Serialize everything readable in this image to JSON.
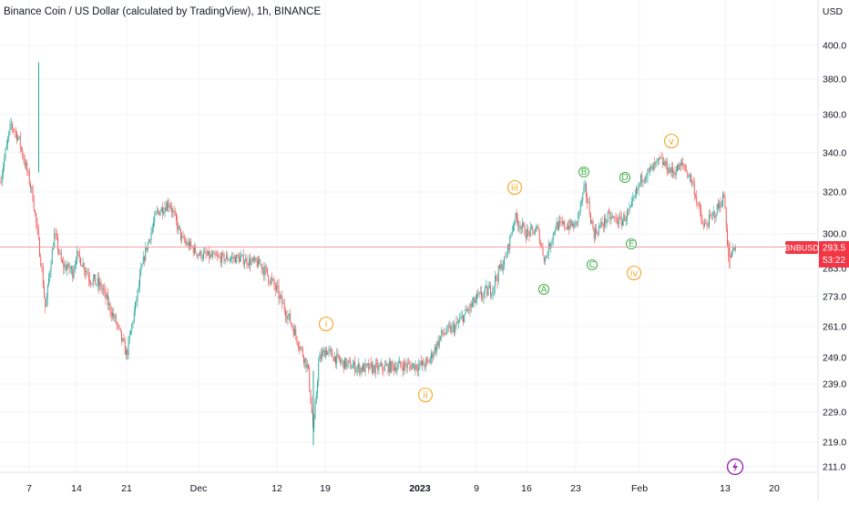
{
  "header": {
    "title": "Binance Coin / US Dollar (calculated by TradingView), 1h, BINANCE"
  },
  "price_scale": {
    "currency": "USD",
    "symbol_tag": "BNBUSD",
    "last_price": "293.5",
    "countdown": "53:22"
  },
  "colors": {
    "up": "#26a69a",
    "down": "#ef5350",
    "grid": "#f0f3fa",
    "price_line": "#f7a1a1",
    "wave_major": "#f5a623",
    "wave_minor": "#4caf50",
    "tag_bg": "#f23645",
    "flash_icon": "#9c27b0"
  },
  "icons": {
    "flash": "lightning-bolt-circle-icon"
  },
  "chart_data": {
    "type": "candlestick",
    "title": "Binance Coin / US Dollar (calculated by TradingView), 1h, BINANCE",
    "ylabel": "USD",
    "ylim": [
      207,
      412
    ],
    "y_scale": "log",
    "y_ticks": [
      "400.0",
      "380.0",
      "360.0",
      "340.0",
      "320.0",
      "300.0",
      "283.0",
      "273.0",
      "261.0",
      "249.0",
      "239.0",
      "229.0",
      "219.0",
      "211.0"
    ],
    "x_ticks": [
      "7",
      "14",
      "21",
      "Dec",
      "12",
      "19",
      "2023",
      "9",
      "16",
      "23",
      "Feb",
      "13",
      "20"
    ],
    "grid": true,
    "price_path": [
      [
        "7 Nov 00:00",
        325
      ],
      [
        "Nov 7 06:00",
        340
      ],
      [
        "Nov 7 18:00",
        355
      ],
      [
        "Nov 8 06:00",
        348
      ],
      [
        "Nov 8 14:00",
        330
      ],
      [
        "Nov 9 00:00",
        318
      ],
      [
        "Nov 9 12:00",
        268
      ],
      [
        "Nov 10 00:00",
        300
      ],
      [
        "Nov 11 00:00",
        285
      ],
      [
        "Nov 13 00:00",
        282
      ],
      [
        "14 Nov",
        290
      ],
      [
        "Nov 16",
        280
      ],
      [
        "Nov 18",
        276
      ],
      [
        "Nov 20",
        262
      ],
      [
        "21 Nov",
        250
      ],
      [
        "Nov 23",
        292
      ],
      [
        "Nov 24",
        310
      ],
      [
        "Nov 26",
        315
      ],
      [
        "Nov 28",
        297
      ],
      [
        "Nov 30",
        293
      ],
      [
        "1 Dec",
        290
      ],
      [
        "Dec 4",
        288
      ],
      [
        "Dec 7",
        288
      ],
      [
        "Dec 10",
        285
      ],
      [
        "12 Dec",
        275
      ],
      [
        "Dec 14",
        262
      ],
      [
        "Dec 16",
        245
      ],
      [
        "Dec 17",
        222
      ],
      [
        "Dec 18",
        248
      ],
      [
        "19 Dec",
        252
      ],
      [
        "Dec 22",
        247
      ],
      [
        "Dec 25",
        245
      ],
      [
        "Dec 28",
        245
      ],
      [
        "Dec 31",
        246
      ],
      [
        "1 Jan 2023",
        246
      ],
      [
        "Jan 3",
        247
      ],
      [
        "Jan 5",
        258
      ],
      [
        "Jan 7",
        261
      ],
      [
        "9 Jan",
        272
      ],
      [
        "Jan 11",
        276
      ],
      [
        "Jan 13",
        288
      ],
      [
        "Jan 14",
        308
      ],
      [
        "16 Jan",
        300
      ],
      [
        "Jan 18",
        302
      ],
      [
        "Jan 19",
        287
      ],
      [
        "Jan 21",
        304
      ],
      [
        "23 Jan",
        304
      ],
      [
        "Jan 25",
        322
      ],
      [
        "Jan 26",
        300
      ],
      [
        "Jan 28",
        308
      ],
      [
        "Jan 30",
        306
      ],
      [
        "Jan 31",
        311
      ],
      [
        "Feb 2",
        328
      ],
      [
        "Feb 3",
        330
      ],
      [
        "Feb 5",
        336
      ],
      [
        "Feb 7",
        330
      ],
      [
        "Feb 8",
        334
      ],
      [
        "Feb 9",
        325
      ],
      [
        "Feb 10",
        303
      ],
      [
        "Feb 11",
        310
      ],
      [
        "Feb 12",
        318
      ],
      [
        "Feb 12 12:00",
        287
      ],
      [
        "13 Feb",
        290
      ],
      [
        "Feb 13 12:00",
        293.5
      ]
    ],
    "annotations": [
      {
        "text": "i",
        "style": "roman-circle",
        "near": "late Dec rally"
      },
      {
        "text": "ii",
        "style": "roman-circle",
        "near": "early Jan low"
      },
      {
        "text": "iii",
        "style": "roman-circle",
        "near": "mid Jan high"
      },
      {
        "text": "iv",
        "style": "roman-circle",
        "near": "early Feb"
      },
      {
        "text": "v",
        "style": "roman-circle",
        "near": "Feb high"
      },
      {
        "text": "A",
        "style": "letter-circle",
        "near": "Jan 19 low"
      },
      {
        "text": "B",
        "style": "letter-circle",
        "near": "Jan 25 high"
      },
      {
        "text": "C",
        "style": "letter-circle",
        "near": "Jan 26 low"
      },
      {
        "text": "D",
        "style": "letter-circle",
        "near": "Jan 30 high"
      },
      {
        "text": "E",
        "style": "letter-circle",
        "near": "Jan 31 low"
      }
    ]
  }
}
